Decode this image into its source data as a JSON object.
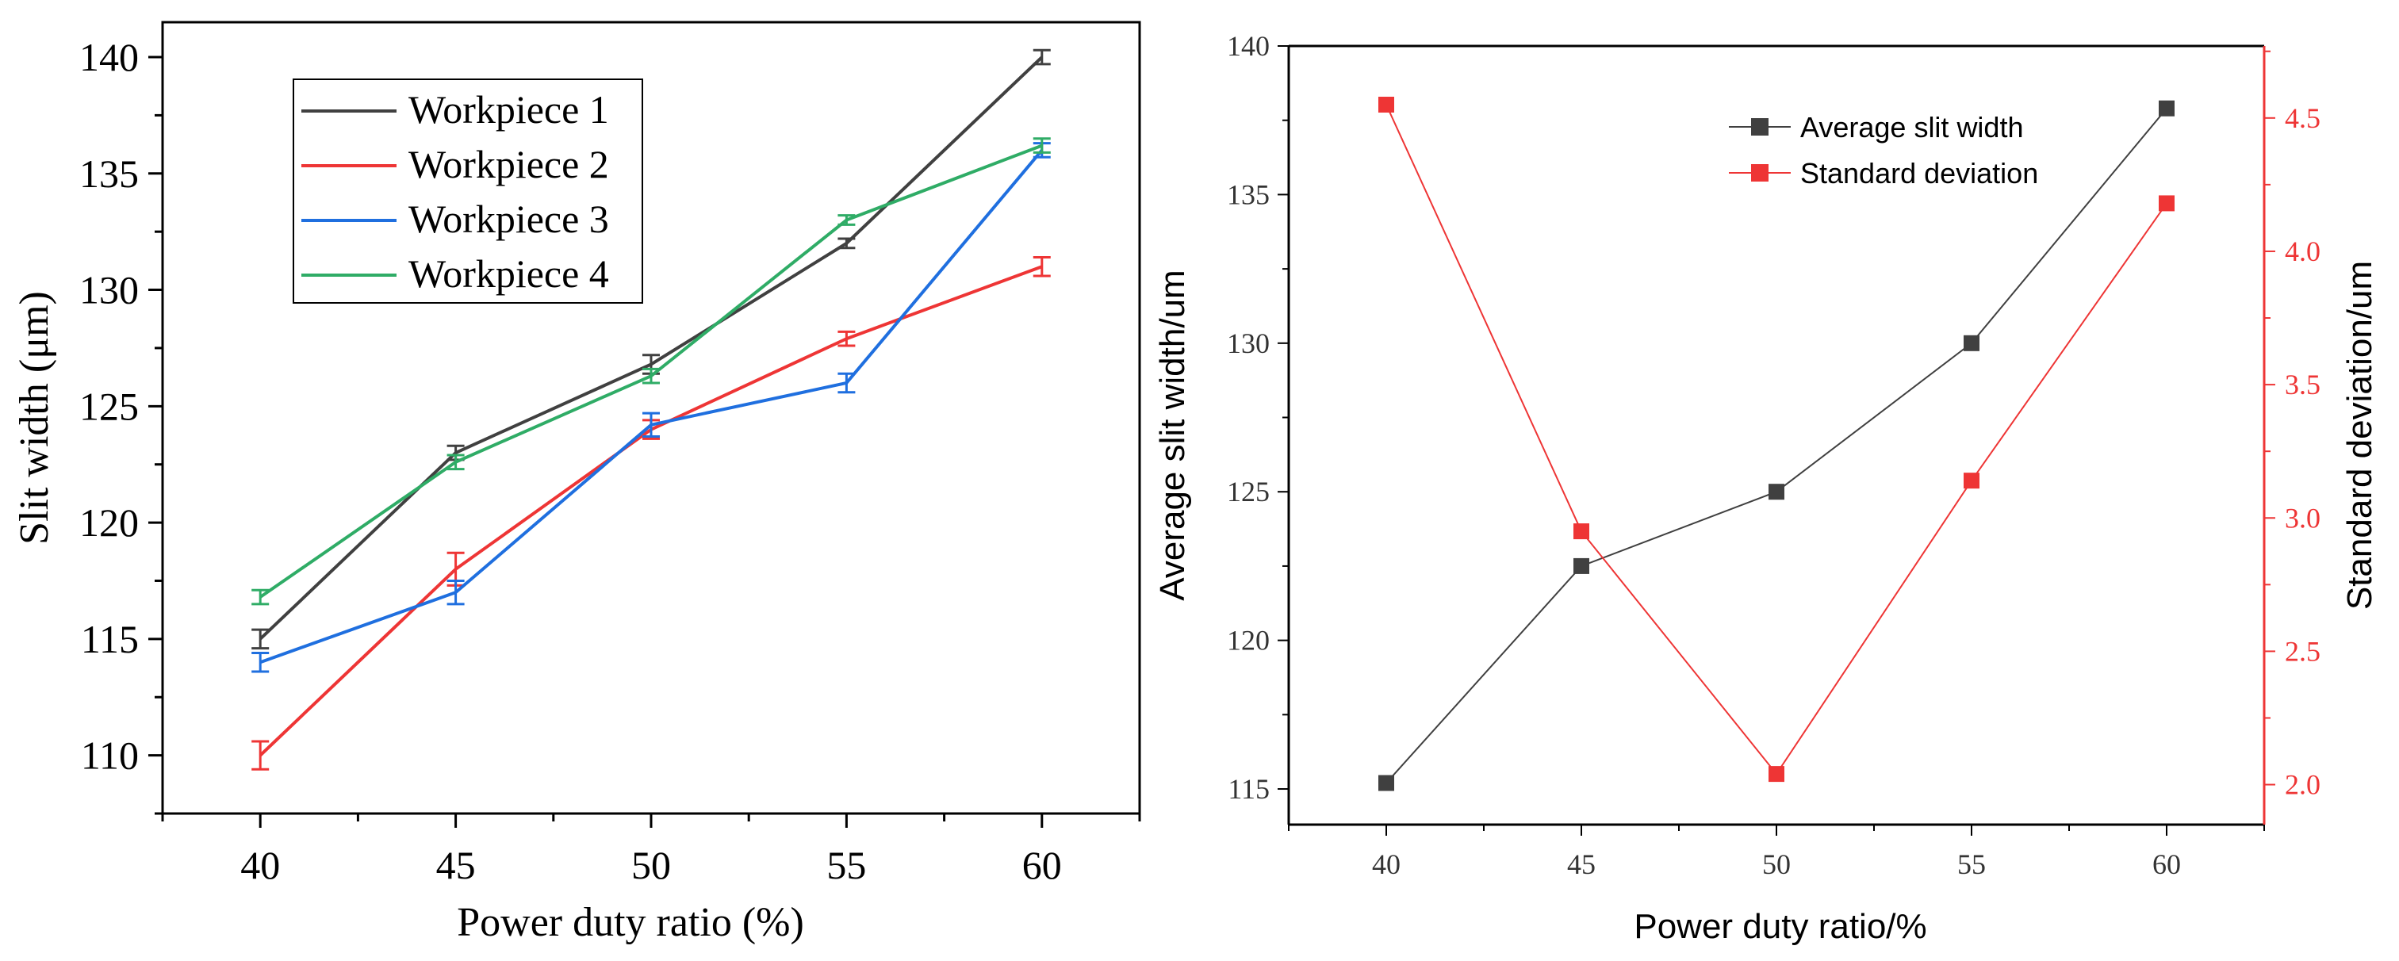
{
  "chart_data": [
    {
      "type": "line",
      "xlabel": "Power duty ratio (%)",
      "ylabel": "Slit width (μm)",
      "x": [
        40,
        45,
        50,
        55,
        60
      ],
      "xticks": [
        "40",
        "45",
        "50",
        "55",
        "60"
      ],
      "xlim": [
        37.5,
        62.5
      ],
      "yticks": [
        "110",
        "115",
        "120",
        "125",
        "130",
        "135",
        "140"
      ],
      "ylim": [
        107.5,
        141.5
      ],
      "legend_position": "top-left",
      "error_bars": true,
      "series": [
        {
          "name": "Workpiece 1",
          "color": "#404040",
          "values": [
            115.0,
            123.0,
            126.8,
            132.0,
            140.0
          ],
          "errors": [
            0.4,
            0.3,
            0.4,
            0.2,
            0.3
          ]
        },
        {
          "name": "Workpiece 2",
          "color": "#ee3535",
          "values": [
            110.0,
            118.0,
            124.0,
            127.9,
            131.0
          ],
          "errors": [
            0.6,
            0.7,
            0.4,
            0.3,
            0.4
          ]
        },
        {
          "name": "Workpiece 3",
          "color": "#1f6fdf",
          "values": [
            114.0,
            117.0,
            124.2,
            126.0,
            136.0
          ],
          "errors": [
            0.4,
            0.5,
            0.5,
            0.4,
            0.3
          ]
        },
        {
          "name": "Workpiece 4",
          "color": "#2fac66",
          "values": [
            116.8,
            122.6,
            126.3,
            133.0,
            136.2
          ],
          "errors": [
            0.3,
            0.3,
            0.3,
            0.2,
            0.3
          ]
        }
      ]
    },
    {
      "type": "line",
      "xlabel": "Power duty ratio/%",
      "ylabel": "Average slit width/um",
      "y2label": "Standard deviation/um",
      "x": [
        40,
        45,
        50,
        55,
        60
      ],
      "xticks": [
        "40",
        "45",
        "50",
        "55",
        "60"
      ],
      "xlim": [
        37.5,
        62.5
      ],
      "yticks": [
        "115",
        "120",
        "125",
        "130",
        "135",
        "140"
      ],
      "ylim": [
        113.8,
        140.0
      ],
      "y2ticks": [
        "2.0",
        "2.5",
        "3.0",
        "3.5",
        "4.0",
        "4.5"
      ],
      "y2lim": [
        1.85,
        4.77
      ],
      "legend_position": "top-right",
      "series": [
        {
          "name": "Average slit width",
          "color": "#404040",
          "axis": "left",
          "values": [
            115.2,
            122.5,
            125.0,
            130.0,
            137.9
          ]
        },
        {
          "name": "Standard deviation",
          "color": "#ee3535",
          "axis": "right",
          "values": [
            4.55,
            2.95,
            2.04,
            3.14,
            4.18
          ]
        }
      ]
    }
  ]
}
